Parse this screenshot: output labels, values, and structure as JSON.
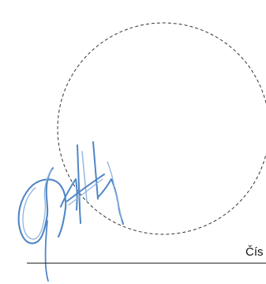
{
  "document": {
    "field_label": "Čís"
  },
  "signature": {
    "ink_color": "#4f86c6",
    "ink_color_light": "#8fb3dd"
  },
  "stamp_placeholder": {
    "style": "dashed circle",
    "color": "#333333"
  }
}
